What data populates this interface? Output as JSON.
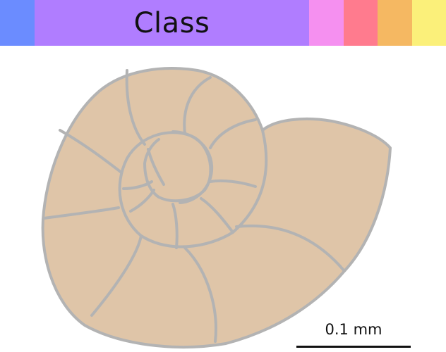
{
  "taxonomy_bar": {
    "label": "Class",
    "colors": {
      "domain": "#6b8cff",
      "class": "#b07dff",
      "order": "#f590f0",
      "family": "#ff7b8e",
      "genus": "#f5b862",
      "species": "#fbf07a"
    }
  },
  "shell": {
    "fill": "#dfc5a8",
    "stroke": "#b3b3b3"
  },
  "scale_bar": {
    "label": "0.1 mm"
  }
}
